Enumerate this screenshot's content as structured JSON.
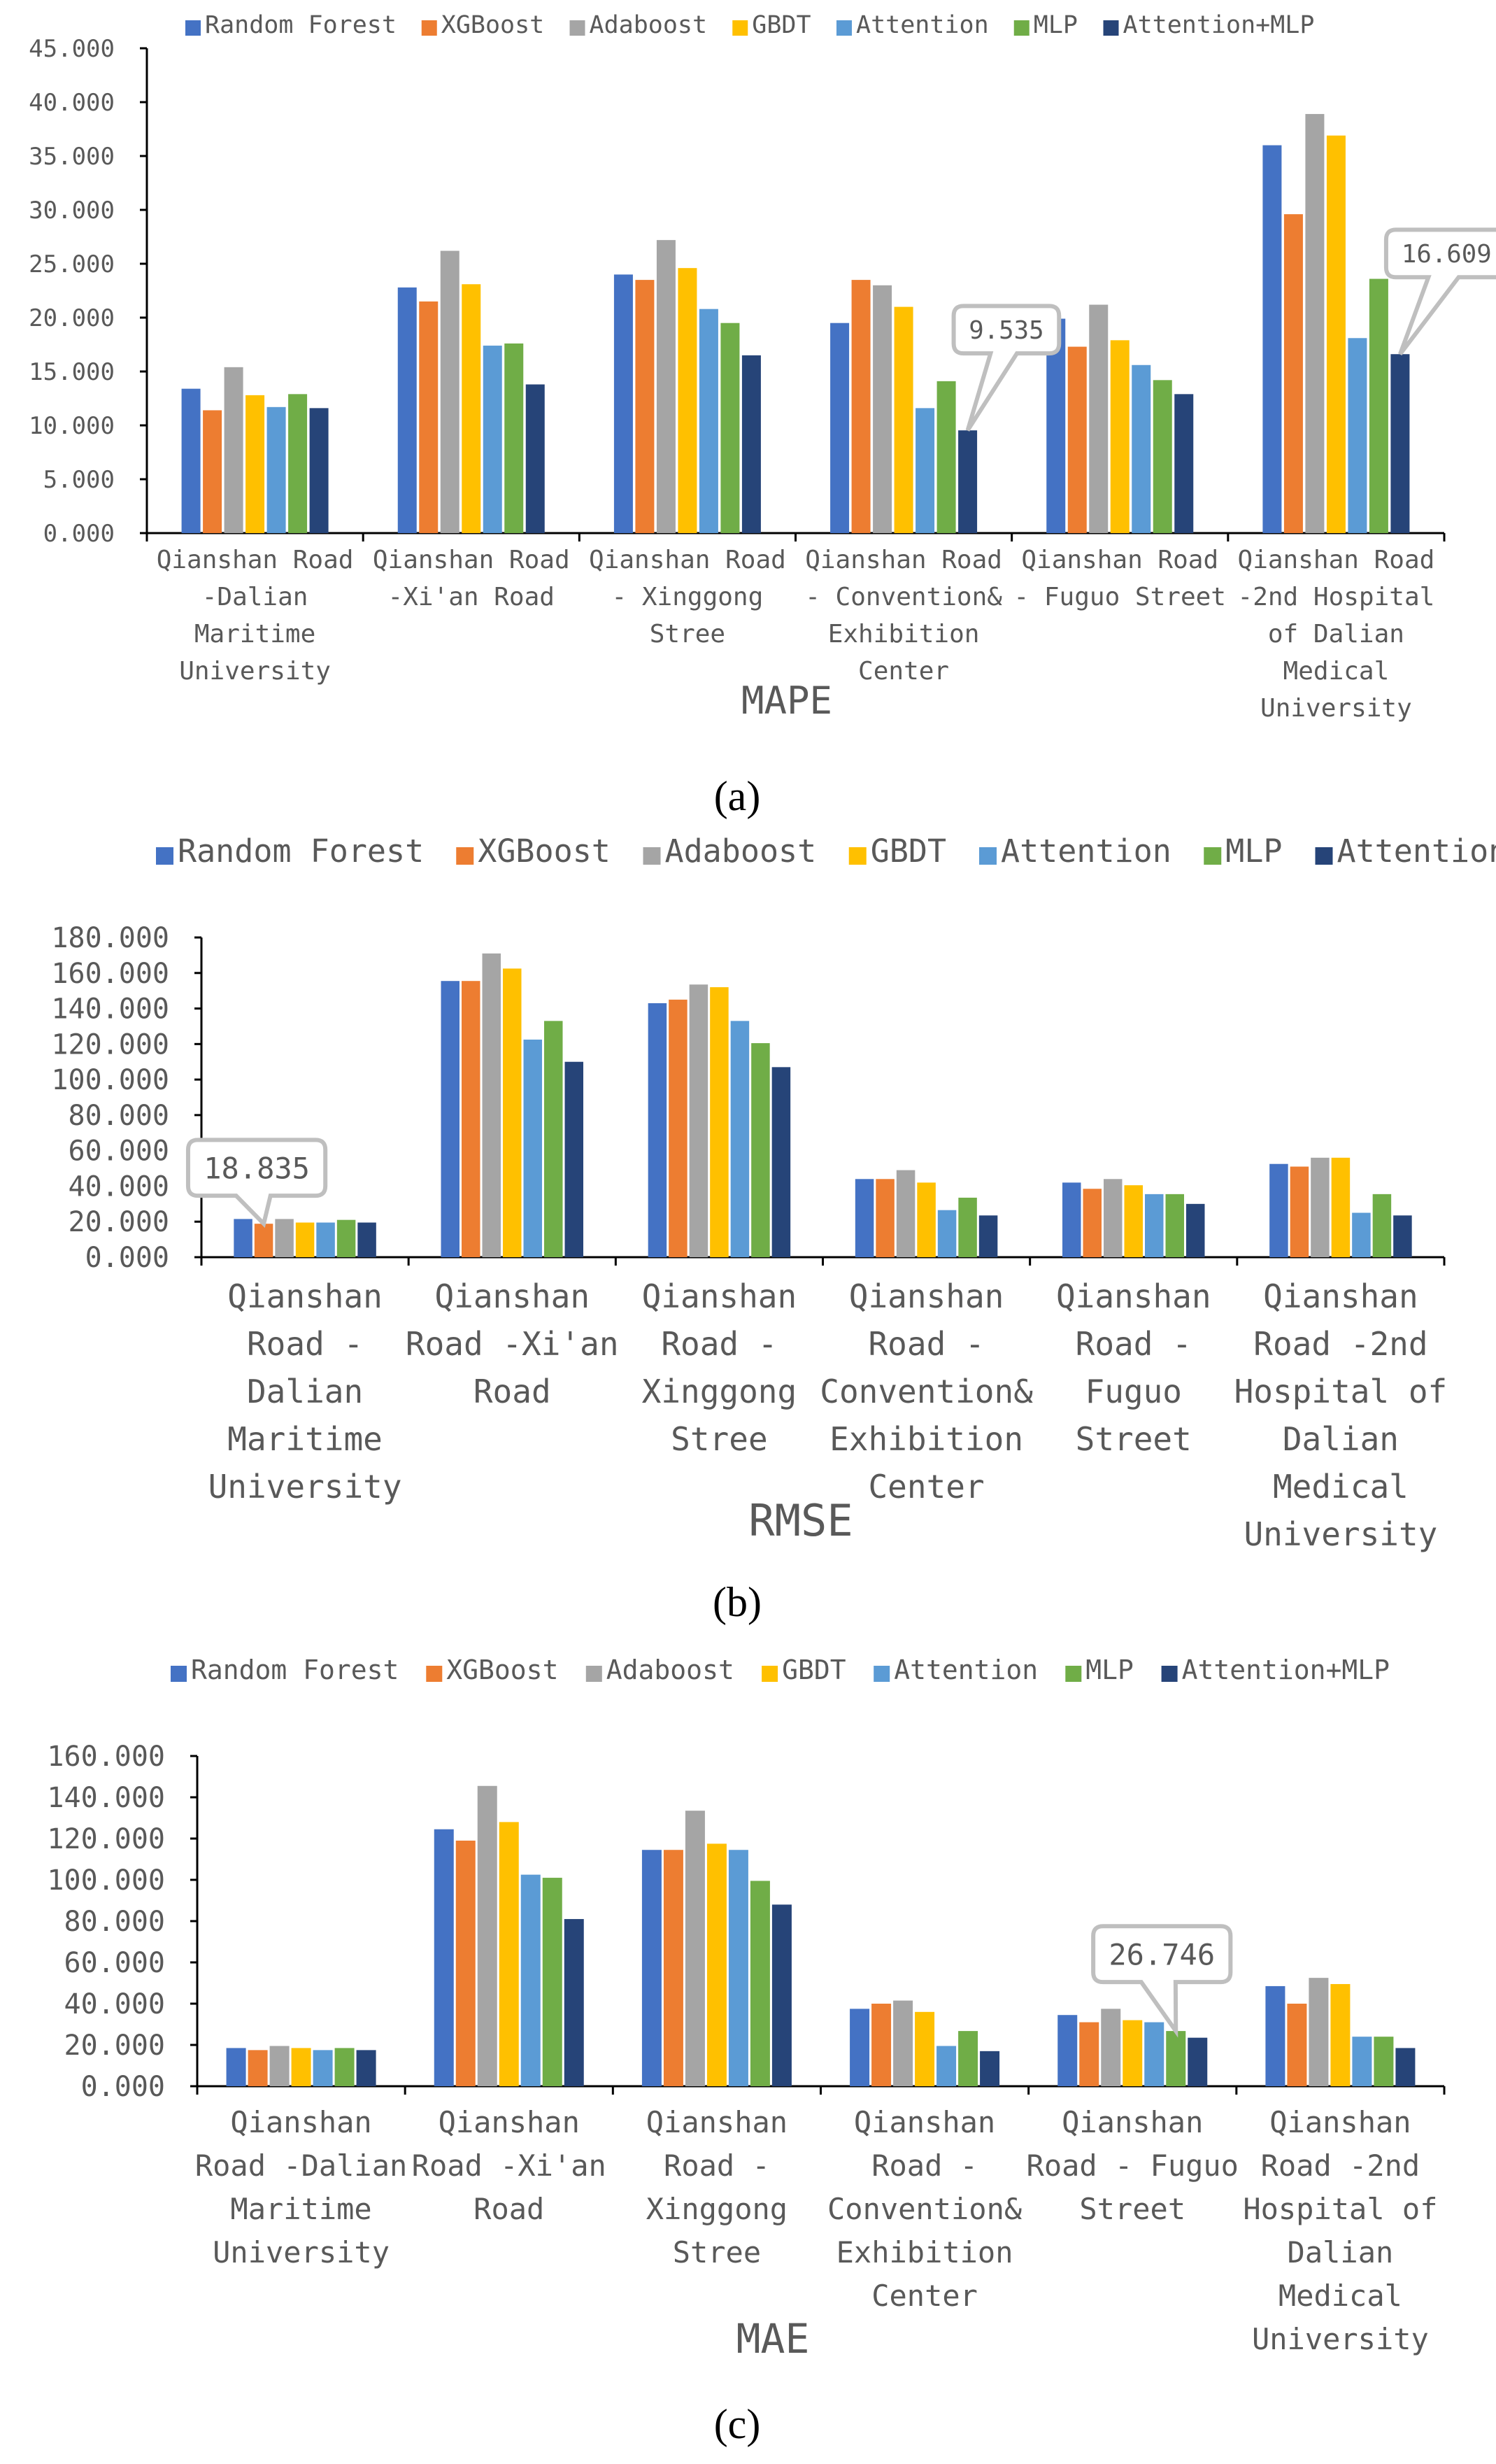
{
  "figure": {
    "panel_labels": [
      "(a)",
      "(b)",
      "(c)"
    ]
  },
  "colors": {
    "Random Forest": "#4472C4",
    "XGBoost": "#ED7D31",
    "Adaboost": "#A5A5A5",
    "GBDT": "#FFC000",
    "Attention": "#5B9BD5",
    "MLP": "#70AD47",
    "Attention+MLP": "#264478",
    "axis": "#000000",
    "text": "#595959",
    "callout_border": "#BFBFBF"
  },
  "chart_data": [
    {
      "type": "bar",
      "title": "MAPE",
      "xlabel": "MAPE",
      "ylabel": "",
      "ylim": [
        0,
        45
      ],
      "yticks": [
        "0.000",
        "5.000",
        "10.000",
        "15.000",
        "20.000",
        "25.000",
        "30.000",
        "35.000",
        "40.000",
        "45.000"
      ],
      "legend_position": "top",
      "categories": [
        [
          "Qianshan Road",
          "-Dalian",
          "Maritime",
          "University"
        ],
        [
          "Qianshan Road",
          "-Xi'an Road"
        ],
        [
          "Qianshan Road",
          "- Xinggong",
          "Stree"
        ],
        [
          "Qianshan Road",
          "- Convention&",
          "Exhibition",
          "Center"
        ],
        [
          "Qianshan Road",
          "- Fuguo Street"
        ],
        [
          "Qianshan Road",
          "-2nd Hospital",
          "of Dalian",
          "Medical",
          "University"
        ]
      ],
      "series": [
        {
          "name": "Random Forest",
          "values": [
            13.4,
            22.8,
            24.0,
            19.5,
            19.9,
            36.0
          ]
        },
        {
          "name": "XGBoost",
          "values": [
            11.4,
            21.5,
            23.5,
            23.5,
            17.3,
            29.6
          ]
        },
        {
          "name": "Adaboost",
          "values": [
            15.4,
            26.2,
            27.2,
            23.0,
            21.2,
            38.9
          ]
        },
        {
          "name": "GBDT",
          "values": [
            12.8,
            23.1,
            24.6,
            21.0,
            17.9,
            36.9
          ]
        },
        {
          "name": "Attention",
          "values": [
            11.7,
            17.4,
            20.8,
            11.6,
            15.6,
            18.1
          ]
        },
        {
          "name": "MLP",
          "values": [
            12.9,
            17.6,
            19.5,
            14.1,
            14.2,
            23.6
          ]
        },
        {
          "name": "Attention+MLP",
          "values": [
            11.6,
            13.8,
            16.5,
            9.535,
            12.9,
            16.609
          ]
        }
      ],
      "annotations": [
        {
          "text": "9.535",
          "category_index": 3,
          "series": "Attention+MLP",
          "value": 9.535
        },
        {
          "text": "16.609",
          "category_index": 5,
          "series": "Attention+MLP",
          "value": 16.609
        }
      ]
    },
    {
      "type": "bar",
      "title": "RMSE",
      "xlabel": "RMSE",
      "ylabel": "",
      "ylim": [
        0,
        180
      ],
      "yticks": [
        "0.000",
        "20.000",
        "40.000",
        "60.000",
        "80.000",
        "100.000",
        "120.000",
        "140.000",
        "160.000",
        "180.000"
      ],
      "legend_position": "top",
      "categories": [
        [
          "Qianshan",
          "Road -",
          "Dalian",
          "Maritime",
          "University"
        ],
        [
          "Qianshan",
          "Road -Xi'an",
          "Road"
        ],
        [
          "Qianshan",
          "Road -",
          "Xinggong",
          "Stree"
        ],
        [
          "Qianshan",
          "Road -",
          "Convention&",
          "Exhibition",
          "Center"
        ],
        [
          "Qianshan",
          "Road -",
          "Fuguo",
          "Street"
        ],
        [
          "Qianshan",
          "Road -2nd",
          "Hospital of",
          "Dalian",
          "Medical",
          "University"
        ]
      ],
      "series": [
        {
          "name": "Random Forest",
          "values": [
            21.5,
            155.5,
            143.0,
            44.0,
            42.0,
            52.5
          ]
        },
        {
          "name": "XGBoost",
          "values": [
            18.835,
            155.5,
            145.0,
            44.0,
            38.5,
            51.0
          ]
        },
        {
          "name": "Adaboost",
          "values": [
            21.5,
            171.0,
            153.5,
            49.0,
            44.0,
            56.0
          ]
        },
        {
          "name": "GBDT",
          "values": [
            19.5,
            162.5,
            152.0,
            42.0,
            40.5,
            56.0
          ]
        },
        {
          "name": "Attention",
          "values": [
            19.5,
            122.5,
            133.0,
            26.5,
            35.5,
            25.0
          ]
        },
        {
          "name": "MLP",
          "values": [
            21.0,
            133.0,
            120.5,
            33.5,
            35.5,
            35.5
          ]
        },
        {
          "name": "Attention+MLP",
          "values": [
            19.5,
            110.0,
            107.0,
            23.5,
            30.0,
            23.5
          ]
        }
      ],
      "annotations": [
        {
          "text": "18.835",
          "category_index": 0,
          "series": "XGBoost",
          "value": 18.835
        }
      ]
    },
    {
      "type": "bar",
      "title": "MAE",
      "xlabel": "MAE",
      "ylabel": "",
      "ylim": [
        0,
        160
      ],
      "yticks": [
        "0.000",
        "20.000",
        "40.000",
        "60.000",
        "80.000",
        "100.000",
        "120.000",
        "140.000",
        "160.000"
      ],
      "legend_position": "top",
      "categories": [
        [
          "Qianshan",
          "Road -Dalian",
          "Maritime",
          "University"
        ],
        [
          "Qianshan",
          "Road -Xi'an",
          "Road"
        ],
        [
          "Qianshan",
          "Road -",
          "Xinggong",
          "Stree"
        ],
        [
          "Qianshan",
          "Road -",
          "Convention&",
          "Exhibition",
          "Center"
        ],
        [
          "Qianshan",
          "Road - Fuguo",
          "Street"
        ],
        [
          "Qianshan",
          "Road -2nd",
          "Hospital of",
          "Dalian",
          "Medical",
          "University"
        ]
      ],
      "series": [
        {
          "name": "Random Forest",
          "values": [
            18.5,
            124.5,
            114.5,
            37.5,
            34.5,
            48.5
          ]
        },
        {
          "name": "XGBoost",
          "values": [
            17.5,
            119.0,
            114.5,
            40.0,
            31.0,
            40.0
          ]
        },
        {
          "name": "Adaboost",
          "values": [
            19.5,
            145.5,
            133.5,
            41.5,
            37.5,
            52.5
          ]
        },
        {
          "name": "GBDT",
          "values": [
            18.5,
            128.0,
            117.5,
            36.0,
            32.0,
            49.5
          ]
        },
        {
          "name": "Attention",
          "values": [
            17.5,
            102.5,
            114.5,
            19.5,
            31.0,
            24.0
          ]
        },
        {
          "name": "MLP",
          "values": [
            18.5,
            101.0,
            99.5,
            26.746,
            26.746,
            24.0
          ]
        },
        {
          "name": "Attention+MLP",
          "values": [
            17.5,
            81.0,
            88.0,
            17.0,
            23.5,
            18.5
          ]
        }
      ],
      "annotations": [
        {
          "text": "26.746",
          "category_index": 4,
          "series": "MLP",
          "value": 26.746
        }
      ]
    }
  ]
}
